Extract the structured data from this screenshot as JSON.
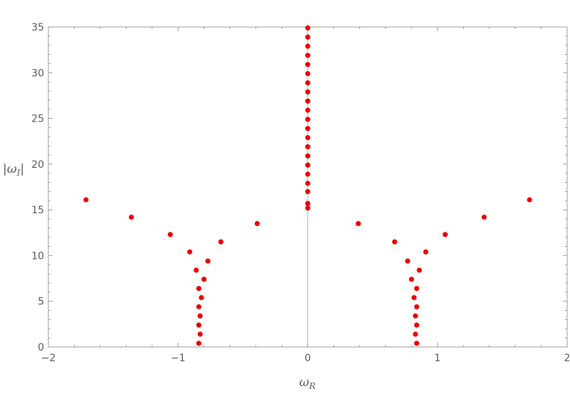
{
  "chart_data": {
    "type": "scatter",
    "title": "",
    "xlabel": "ωR",
    "ylabel": "|ωI|",
    "xlim": [
      -2,
      2
    ],
    "ylim": [
      0,
      35
    ],
    "x_ticks": [
      -2,
      -1,
      0,
      1,
      2
    ],
    "y_ticks": [
      0,
      5,
      10,
      15,
      20,
      25,
      30,
      35
    ],
    "grid": false,
    "marker_color": "#ee0000",
    "points": [
      {
        "x": 0,
        "y": 15.2
      },
      {
        "x": 0,
        "y": 15.7
      },
      {
        "x": 0,
        "y": 17.0
      },
      {
        "x": 0,
        "y": 17.9
      },
      {
        "x": 0,
        "y": 18.9
      },
      {
        "x": 0,
        "y": 19.9
      },
      {
        "x": 0,
        "y": 20.9
      },
      {
        "x": 0,
        "y": 21.9
      },
      {
        "x": 0,
        "y": 22.9
      },
      {
        "x": 0,
        "y": 23.9
      },
      {
        "x": 0,
        "y": 24.9
      },
      {
        "x": 0,
        "y": 25.9
      },
      {
        "x": 0,
        "y": 26.9
      },
      {
        "x": 0,
        "y": 27.9
      },
      {
        "x": 0,
        "y": 28.9
      },
      {
        "x": 0,
        "y": 29.9
      },
      {
        "x": 0,
        "y": 30.9
      },
      {
        "x": 0,
        "y": 31.9
      },
      {
        "x": 0,
        "y": 32.9
      },
      {
        "x": 0,
        "y": 33.9
      },
      {
        "x": 0,
        "y": 34.9
      },
      {
        "x": -0.84,
        "y": 0.4
      },
      {
        "x": -0.83,
        "y": 1.4
      },
      {
        "x": -0.84,
        "y": 2.4
      },
      {
        "x": -0.83,
        "y": 3.4
      },
      {
        "x": -0.84,
        "y": 4.4
      },
      {
        "x": -0.82,
        "y": 5.4
      },
      {
        "x": -0.84,
        "y": 6.4
      },
      {
        "x": -0.8,
        "y": 7.4
      },
      {
        "x": -0.86,
        "y": 8.4
      },
      {
        "x": -0.77,
        "y": 9.4
      },
      {
        "x": -0.91,
        "y": 10.4
      },
      {
        "x": -0.67,
        "y": 11.5
      },
      {
        "x": -1.06,
        "y": 12.3
      },
      {
        "x": -0.39,
        "y": 13.5
      },
      {
        "x": -1.36,
        "y": 14.2
      },
      {
        "x": -1.71,
        "y": 16.1
      },
      {
        "x": 0.84,
        "y": 0.4
      },
      {
        "x": 0.83,
        "y": 1.4
      },
      {
        "x": 0.84,
        "y": 2.4
      },
      {
        "x": 0.83,
        "y": 3.4
      },
      {
        "x": 0.84,
        "y": 4.4
      },
      {
        "x": 0.82,
        "y": 5.4
      },
      {
        "x": 0.84,
        "y": 6.4
      },
      {
        "x": 0.8,
        "y": 7.4
      },
      {
        "x": 0.86,
        "y": 8.4
      },
      {
        "x": 0.77,
        "y": 9.4
      },
      {
        "x": 0.91,
        "y": 10.4
      },
      {
        "x": 0.67,
        "y": 11.5
      },
      {
        "x": 1.06,
        "y": 12.3
      },
      {
        "x": 0.39,
        "y": 13.5
      },
      {
        "x": 1.36,
        "y": 14.2
      },
      {
        "x": 1.71,
        "y": 16.1
      }
    ]
  }
}
